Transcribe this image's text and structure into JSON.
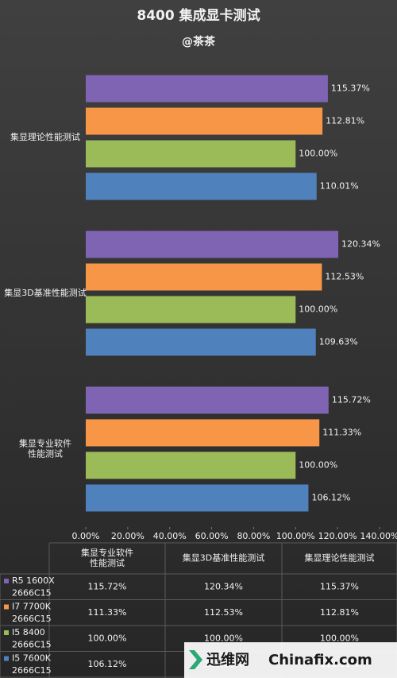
{
  "chart_data": {
    "type": "bar",
    "orientation": "horizontal",
    "title": "8400 集成显卡测试",
    "subtitle": "@茶茶",
    "categories": [
      "集显专业软件\n性能测试",
      "集显3D基准性能测试",
      "集显理论性能测试"
    ],
    "series": [
      {
        "name": "R5 1600X 2666C15",
        "color": "#8064b4",
        "values": [
          115.72,
          120.34,
          115.37
        ],
        "value_labels": [
          "115.72%",
          "120.34%",
          "115.37%"
        ]
      },
      {
        "name": "I7 7700K 2666C15",
        "color": "#f79646",
        "values": [
          111.33,
          112.53,
          112.81
        ],
        "value_labels": [
          "111.33%",
          "112.53%",
          "112.81%"
        ]
      },
      {
        "name": "I5 8400 2666C15",
        "color": "#9bbb59",
        "values": [
          100.0,
          100.0,
          100.0
        ],
        "value_labels": [
          "100.00%",
          "100.00%",
          "100.00%"
        ]
      },
      {
        "name": "I5 7600K 2666C15",
        "color": "#4f81bd",
        "values": [
          106.12,
          109.63,
          110.01
        ],
        "value_labels": [
          "106.12%",
          "109.63%",
          "110.01%"
        ]
      }
    ],
    "xlim": [
      0,
      140
    ],
    "xticks": [
      {
        "value": 0,
        "label": "0.00%"
      },
      {
        "value": 20,
        "label": "20.00%"
      },
      {
        "value": 40,
        "label": "40.00%"
      },
      {
        "value": 60,
        "label": "60.00%"
      },
      {
        "value": 80,
        "label": "80.00%"
      },
      {
        "value": 100,
        "label": "100.00%"
      },
      {
        "value": 120,
        "label": "120.00%"
      },
      {
        "value": 140,
        "label": "140.00%"
      }
    ],
    "data_table": true,
    "watermark": [
      "迅维网",
      "Chinafix.com"
    ]
  }
}
